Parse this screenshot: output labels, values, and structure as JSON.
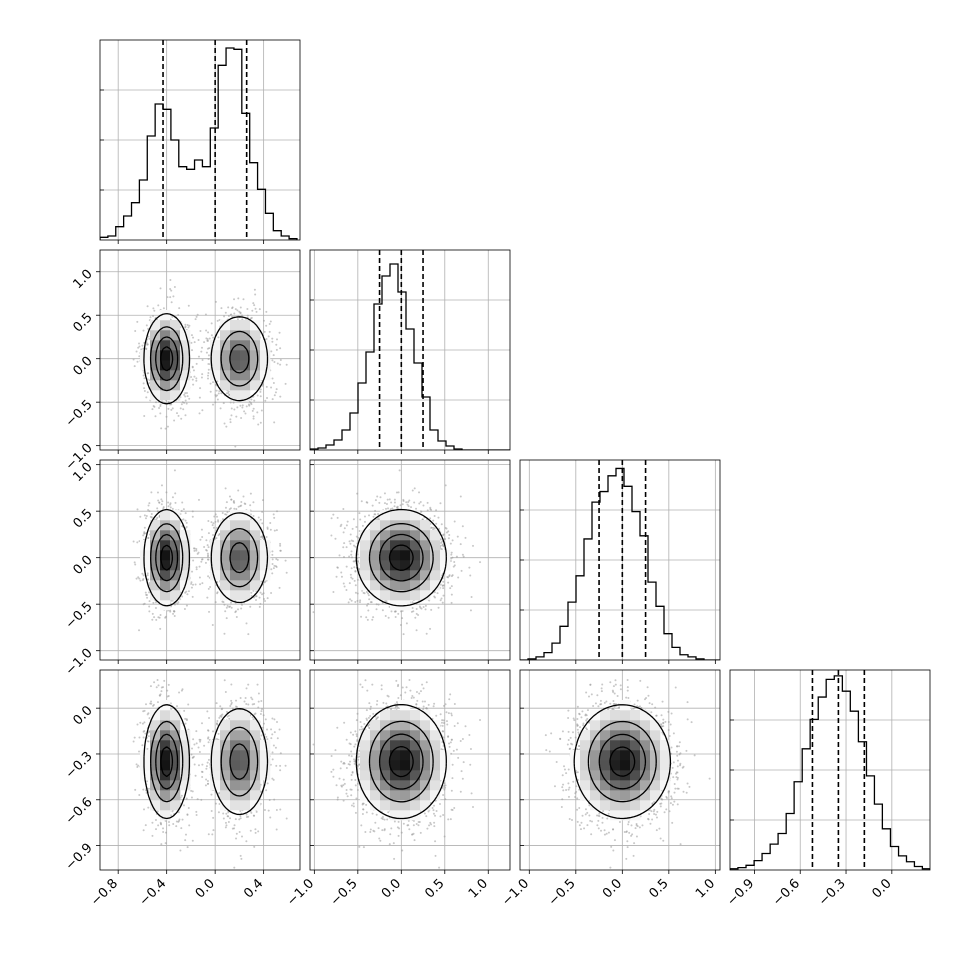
{
  "chart_data": {
    "type": "corner",
    "n_params": 4,
    "parameters": [
      {
        "index": 0,
        "mixture": [
          {
            "weight": 0.5,
            "mean": -0.4,
            "sd": 0.09
          },
          {
            "weight": 0.5,
            "mean": 0.2,
            "sd": 0.12
          }
        ],
        "range": [
          -0.95,
          0.7
        ],
        "ticks": [
          -0.8,
          -0.4,
          0.0,
          0.4
        ],
        "tick_labels": [
          "−0.8",
          "−0.4",
          "0.0",
          "0.4"
        ],
        "quantiles": [
          -0.43,
          0.0,
          0.26
        ],
        "histogram": {
          "bin_edges": [
            -0.95,
            -0.885,
            -0.82,
            -0.755,
            -0.69,
            -0.625,
            -0.56,
            -0.495,
            -0.43,
            -0.365,
            -0.3,
            -0.235,
            -0.17,
            -0.105,
            -0.04,
            0.025,
            0.09,
            0.155,
            0.22,
            0.285,
            0.35,
            0.415,
            0.48,
            0.545,
            0.61,
            0.675
          ],
          "counts": [
            2,
            3,
            10,
            18,
            28,
            45,
            78,
            102,
            98,
            75,
            55,
            53,
            60,
            55,
            84,
            131,
            144,
            143,
            95,
            58,
            38,
            20,
            7,
            3,
            1
          ]
        },
        "hist_max": 150
      },
      {
        "index": 1,
        "mixture": [
          {
            "weight": 1.0,
            "mean": 0.0,
            "sd": 0.25
          }
        ],
        "range": [
          -1.05,
          1.25
        ],
        "ticks": [
          -1.0,
          -0.5,
          0.0,
          0.5,
          1.0
        ],
        "tick_labels": [
          "−1.0",
          "−0.5",
          "0.0",
          "0.5",
          "1.0"
        ],
        "quantiles": [
          -0.25,
          0.0,
          0.25
        ],
        "histogram": {
          "bin_edges": [
            -1.05,
            -0.958,
            -0.866,
            -0.774,
            -0.682,
            -0.59,
            -0.498,
            -0.406,
            -0.314,
            -0.222,
            -0.13,
            -0.038,
            0.054,
            0.146,
            0.238,
            0.33,
            0.422,
            0.514,
            0.606,
            0.698,
            0.79,
            0.882,
            0.974,
            1.066,
            1.158,
            1.25
          ],
          "counts": [
            1,
            2,
            5,
            10,
            20,
            37,
            67,
            98,
            146,
            174,
            186,
            158,
            121,
            87,
            53,
            20,
            9,
            4,
            1,
            0,
            0,
            0,
            0,
            0,
            0
          ]
        },
        "hist_max": 200
      },
      {
        "index": 2,
        "mixture": [
          {
            "weight": 1.0,
            "mean": 0.0,
            "sd": 0.25
          }
        ],
        "range": [
          -1.1,
          1.05
        ],
        "ticks": [
          -1.0,
          -0.5,
          0.0,
          0.5,
          1.0
        ],
        "tick_labels": [
          "−1.0",
          "−0.5",
          "0.0",
          "0.5",
          "1.0"
        ],
        "quantiles": [
          -0.25,
          0.0,
          0.25
        ],
        "histogram": {
          "bin_edges": [
            -1.1,
            -1.014,
            -0.928,
            -0.842,
            -0.756,
            -0.67,
            -0.584,
            -0.498,
            -0.412,
            -0.326,
            -0.24,
            -0.154,
            -0.068,
            0.018,
            0.104,
            0.19,
            0.276,
            0.362,
            0.448,
            0.534,
            0.62,
            0.706,
            0.792,
            0.878,
            0.964,
            1.05
          ],
          "counts": [
            0,
            1,
            3,
            7,
            16,
            32,
            55,
            80,
            115,
            150,
            160,
            175,
            182,
            165,
            141,
            118,
            74,
            51,
            25,
            12,
            5,
            3,
            1,
            0,
            0
          ]
        },
        "hist_max": 190
      },
      {
        "index": 3,
        "mixture": [
          {
            "weight": 1.0,
            "mean": -0.35,
            "sd": 0.18
          }
        ],
        "range": [
          -1.06,
          0.25
        ],
        "ticks": [
          -0.9,
          -0.6,
          -0.3,
          0.0
        ],
        "tick_labels": [
          "−0.9",
          "−0.6",
          "−0.3",
          "0.0"
        ],
        "quantiles": [
          -0.52,
          -0.35,
          -0.18
        ],
        "histogram": {
          "bin_edges": [
            -1.06,
            -1.008,
            -0.955,
            -0.902,
            -0.85,
            -0.797,
            -0.745,
            -0.692,
            -0.64,
            -0.587,
            -0.535,
            -0.482,
            -0.43,
            -0.377,
            -0.324,
            -0.272,
            -0.219,
            -0.166,
            -0.114,
            -0.062,
            -0.009,
            0.044,
            0.096,
            0.148,
            0.2,
            0.25
          ],
          "counts": [
            1,
            2,
            4,
            8,
            14,
            22,
            31,
            48,
            75,
            103,
            128,
            147,
            162,
            165,
            152,
            135,
            109,
            80,
            56,
            35,
            20,
            12,
            7,
            3,
            1
          ]
        },
        "hist_max": 170
      }
    ],
    "contour_levels_note": "",
    "grid": true
  }
}
